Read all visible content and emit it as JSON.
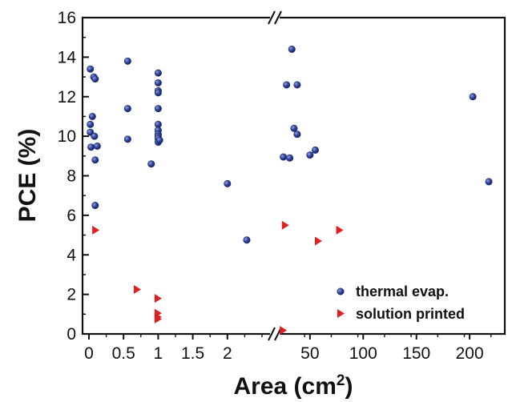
{
  "chart_data": {
    "type": "scatter",
    "xlabel": "Area (cm",
    "xlabel_sup": "2",
    "xlabel_end": ")",
    "ylabel": "PCE (%)",
    "ylim": [
      0,
      16
    ],
    "y_ticks": [
      "0",
      "2",
      "4",
      "6",
      "8",
      "10",
      "12",
      "14",
      "16"
    ],
    "x_axis_broken": true,
    "x_segments": [
      {
        "range": [
          0,
          2.5
        ],
        "ticks": [
          "0",
          "0.5",
          "1",
          "1.5",
          "2"
        ]
      },
      {
        "range": [
          20,
          230
        ],
        "ticks": [
          "50",
          "100",
          "150",
          "200"
        ]
      }
    ],
    "legend_position": "bottom-right",
    "series": [
      {
        "name": "thermal evap.",
        "marker": "sphere",
        "color": "#2b3f95",
        "points": [
          [
            0.02,
            13.4
          ],
          [
            0.07,
            13.0
          ],
          [
            0.09,
            12.9
          ],
          [
            0.05,
            11.0
          ],
          [
            0.02,
            10.6
          ],
          [
            0.02,
            10.2
          ],
          [
            0.08,
            10.0
          ],
          [
            0.12,
            9.5
          ],
          [
            0.03,
            9.45
          ],
          [
            0.09,
            8.8
          ],
          [
            0.09,
            6.5
          ],
          [
            0.56,
            13.8
          ],
          [
            0.56,
            11.4
          ],
          [
            0.56,
            9.85
          ],
          [
            0.9,
            8.6
          ],
          [
            1.0,
            13.2
          ],
          [
            1.0,
            12.7
          ],
          [
            1.0,
            12.3
          ],
          [
            1.0,
            12.2
          ],
          [
            1.0,
            11.4
          ],
          [
            1.0,
            10.6
          ],
          [
            1.0,
            10.3
          ],
          [
            1.0,
            10.1
          ],
          [
            1.0,
            10.0
          ],
          [
            1.0,
            9.9
          ],
          [
            1.0,
            9.7
          ],
          [
            1.02,
            9.8
          ],
          [
            2.0,
            7.6
          ],
          [
            2.28,
            4.75
          ],
          [
            25,
            8.95
          ],
          [
            28,
            12.6
          ],
          [
            31,
            8.9
          ],
          [
            33,
            14.4
          ],
          [
            35,
            10.4
          ],
          [
            38,
            10.1
          ],
          [
            38,
            12.6
          ],
          [
            50,
            9.05
          ],
          [
            55,
            9.3
          ],
          [
            203,
            12.0
          ],
          [
            218,
            7.7
          ]
        ]
      },
      {
        "name": "solution printed",
        "marker": "triangle-right",
        "color": "#e02020",
        "points": [
          [
            0.1,
            5.25
          ],
          [
            0.7,
            2.25
          ],
          [
            1.0,
            1.8
          ],
          [
            1.0,
            1.05
          ],
          [
            1.0,
            0.85
          ],
          [
            1.0,
            0.75
          ],
          [
            25,
            0.18
          ],
          [
            27,
            5.5
          ],
          [
            58,
            4.7
          ],
          [
            78,
            5.25
          ]
        ]
      }
    ]
  }
}
